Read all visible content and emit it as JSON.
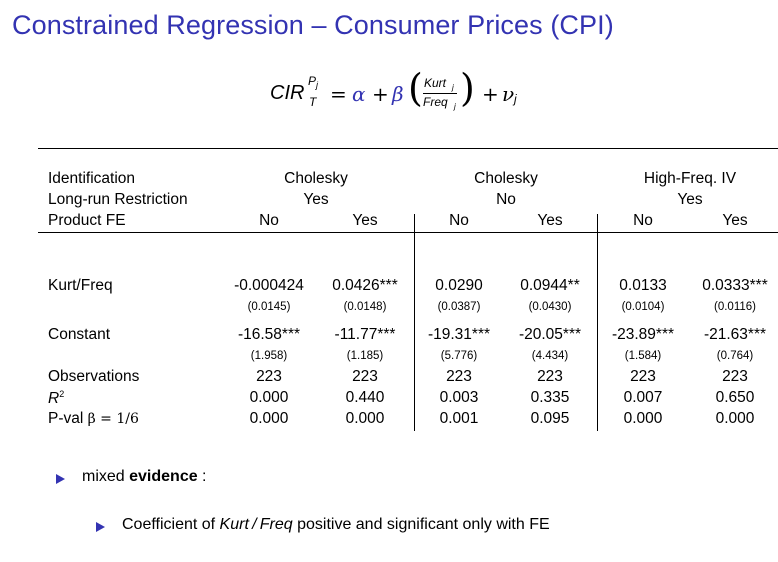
{
  "slide": {
    "title": "Constrained Regression – Consumer Prices (CPI)"
  },
  "formula": {
    "lhs_base": "CIR",
    "lhs_sup": "P",
    "lhs_sup_sub": "j",
    "lhs_sub": "T",
    "eq": "=",
    "alpha": "α",
    "plus1": "+",
    "beta": "β",
    "num": "Kurt",
    "num_sub": "j",
    "den": "Freq",
    "den_sub": "j",
    "plus2": "+",
    "nu": "ν",
    "nu_sub": "j"
  },
  "table": {
    "header_rows": [
      {
        "label": "Identification",
        "groups": [
          "Cholesky",
          "Cholesky",
          "High-Freq. IV"
        ]
      },
      {
        "label": "Long-run Restriction",
        "groups": [
          "Yes",
          "No",
          "Yes"
        ]
      }
    ],
    "product_fe": {
      "label": "Product FE",
      "values": [
        "No",
        "Yes",
        "No",
        "Yes",
        "No",
        "Yes"
      ]
    },
    "rows": [
      {
        "label": "Kurt/Freq",
        "values": [
          "-0.000424",
          "0.0426***",
          "0.0290",
          "0.0944**",
          "0.0133",
          "0.0333***"
        ],
        "se": [
          "(0.0145)",
          "(0.0148)",
          "(0.0387)",
          "(0.0430)",
          "(0.0104)",
          "(0.0116)"
        ]
      },
      {
        "label": "Constant",
        "values": [
          "-16.58***",
          "-11.77***",
          "-19.31***",
          "-20.05***",
          "-23.89***",
          "-21.63***"
        ],
        "se": [
          "(1.958)",
          "(1.185)",
          "(5.776)",
          "(4.434)",
          "(1.584)",
          "(0.764)"
        ]
      },
      {
        "label": "Observations",
        "values": [
          "223",
          "223",
          "223",
          "223",
          "223",
          "223"
        ]
      },
      {
        "label": "R",
        "label_sup": "2",
        "values": [
          "0.000",
          "0.440",
          "0.003",
          "0.335",
          "0.007",
          "0.650"
        ]
      },
      {
        "label": "P-val ",
        "label_math": "β = 1/6",
        "values": [
          "0.000",
          "0.000",
          "0.001",
          "0.095",
          "0.000",
          "0.000"
        ]
      }
    ]
  },
  "bullets": {
    "b1_pre": "mixed ",
    "b1_bold": "evidence",
    "b1_post": " :",
    "b2_pre": "Coefficient of ",
    "b2_italic": "Kurt / Freq",
    "b2_post": " positive and significant only with FE"
  },
  "colors": {
    "title": "#3333b2",
    "bullet_marker": "#3333b2",
    "greek": "#3333b2"
  }
}
